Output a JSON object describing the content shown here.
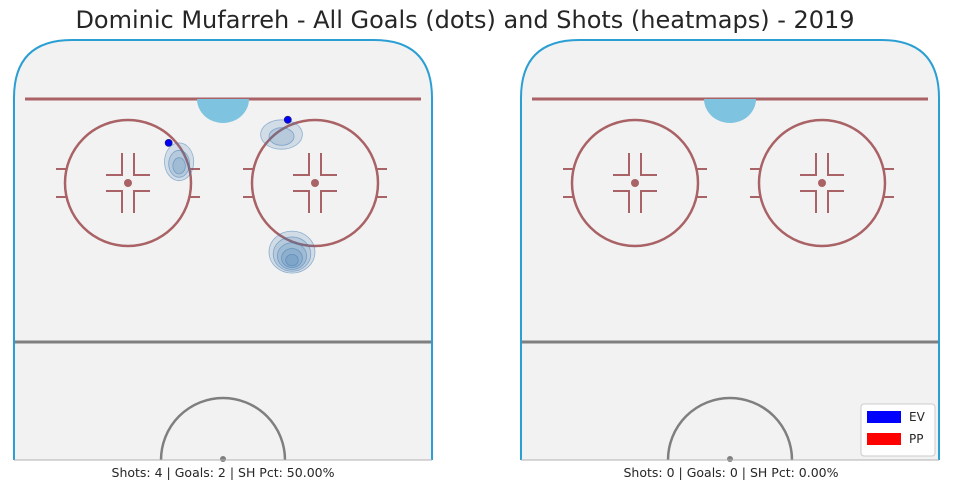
{
  "title": "Dominic Mufarreh - All Goals (dots) and Shots (heatmaps) - 2019",
  "colors": {
    "ice": "#f2f2f2",
    "boards": "#2b9fd3",
    "red_line": "#a96265",
    "center_line": "#7f7f7f",
    "crease": "#7ec4e0",
    "ev_goal": "#0000ff",
    "pp_goal": "#ff0000",
    "heat": "#3c78b4"
  },
  "chart_data": [
    {
      "type": "heatmap",
      "panel": "left",
      "stats": "Shots: 4 | Goals: 2 | SH Pct: 50.00%",
      "shots": 4,
      "goals": 2,
      "sh_pct": "50.00%",
      "goals_points": [
        {
          "x": 0.37,
          "y": 0.245,
          "strength": "EV"
        },
        {
          "x": 0.655,
          "y": 0.19,
          "strength": "EV"
        }
      ],
      "shot_heat": [
        {
          "x": 0.395,
          "y": 0.29,
          "spread_x": 0.035,
          "spread_y": 0.045,
          "levels": 3
        },
        {
          "x": 0.64,
          "y": 0.225,
          "spread_x": 0.05,
          "spread_y": 0.035,
          "levels": 2
        },
        {
          "x": 0.665,
          "y": 0.505,
          "spread_x": 0.055,
          "spread_y": 0.05,
          "levels": 5
        }
      ],
      "legend": []
    },
    {
      "type": "heatmap",
      "panel": "right",
      "stats": "Shots: 0 | Goals: 0 | SH Pct: 0.00%",
      "shots": 0,
      "goals": 0,
      "sh_pct": "0.00%",
      "goals_points": [],
      "shot_heat": [],
      "legend": [
        {
          "label": "EV",
          "color": "#0000ff"
        },
        {
          "label": "PP",
          "color": "#ff0000"
        }
      ]
    }
  ]
}
